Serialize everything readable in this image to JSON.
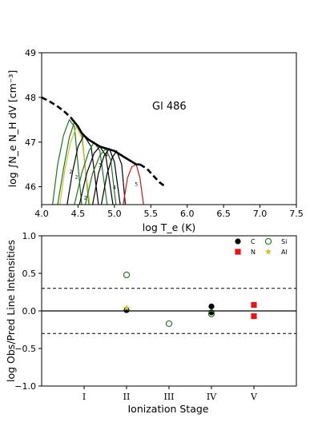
{
  "chart_data": [
    {
      "type": "line",
      "title": "Gl 486",
      "xlabel": "log T_e (K)",
      "ylabel": "log ∫N_e N_H dV [cm⁻³]",
      "xlim": [
        4.0,
        7.5
      ],
      "ylim": [
        45.6,
        49.0
      ],
      "xticks": [
        "4.0",
        "4.5",
        "5.0",
        "5.5",
        "6.0",
        "6.5",
        "7.0",
        "7.5"
      ],
      "yticks": [
        "46",
        "47",
        "48",
        "49"
      ],
      "emd": {
        "solid": {
          "x": [
            4.4,
            4.5,
            4.55,
            4.6,
            4.65,
            4.7,
            4.8,
            4.9,
            5.0,
            5.1,
            5.2,
            5.3,
            5.35
          ],
          "y": [
            47.55,
            47.35,
            47.2,
            47.12,
            47.05,
            47.0,
            46.9,
            46.85,
            46.8,
            46.7,
            46.6,
            46.5,
            46.5
          ]
        },
        "dashed_low": {
          "x": [
            4.0,
            4.1,
            4.2,
            4.3,
            4.4
          ],
          "y": [
            48.0,
            47.92,
            47.82,
            47.7,
            47.55
          ]
        },
        "dashed_high": {
          "x": [
            5.35,
            5.45,
            5.55,
            5.62,
            5.7
          ],
          "y": [
            46.5,
            46.4,
            46.22,
            46.1,
            46.0
          ]
        }
      },
      "contribution_curves": [
        {
          "color": "#1a7a1a",
          "x": [
            4.15,
            4.22,
            4.3,
            4.38,
            4.45,
            4.55
          ],
          "y": [
            45.6,
            46.5,
            47.15,
            47.5,
            47.35,
            45.6
          ]
        },
        {
          "color": "#1a7a1a",
          "x": [
            4.22,
            4.3,
            4.38,
            4.45,
            4.55,
            4.65
          ],
          "y": [
            45.6,
            46.4,
            47.1,
            47.45,
            47.2,
            45.6
          ]
        },
        {
          "color": "#c9c62a",
          "x": [
            4.25,
            4.32,
            4.4,
            4.48,
            4.55,
            4.66
          ],
          "y": [
            45.6,
            46.4,
            47.0,
            47.35,
            47.1,
            45.6
          ]
        },
        {
          "color": "#000000",
          "x": [
            4.35,
            4.42,
            4.5,
            4.58,
            4.68,
            4.78
          ],
          "y": [
            45.6,
            46.3,
            46.9,
            47.15,
            46.9,
            45.6
          ]
        },
        {
          "color": "#1a7a1a",
          "x": [
            4.45,
            4.55,
            4.65,
            4.72,
            4.8,
            4.9
          ],
          "y": [
            45.6,
            46.3,
            46.8,
            47.0,
            46.8,
            45.6
          ]
        },
        {
          "color": "#000000",
          "x": [
            4.52,
            4.62,
            4.72,
            4.8,
            4.88,
            4.98
          ],
          "y": [
            45.6,
            46.3,
            46.75,
            46.9,
            46.7,
            45.6
          ]
        },
        {
          "color": "#1a7a1a",
          "x": [
            4.6,
            4.7,
            4.8,
            4.88,
            4.95,
            5.02
          ],
          "y": [
            45.6,
            46.3,
            46.7,
            46.85,
            46.6,
            45.6
          ]
        },
        {
          "color": "#000000",
          "x": [
            4.7,
            4.78,
            4.86,
            4.93,
            5.0,
            5.08
          ],
          "y": [
            45.6,
            46.3,
            46.7,
            46.85,
            46.55,
            45.6
          ]
        },
        {
          "color": "#000000",
          "x": [
            4.82,
            4.9,
            4.97,
            5.03,
            5.1,
            5.15
          ],
          "y": [
            45.6,
            46.3,
            46.65,
            46.8,
            46.5,
            45.6
          ]
        },
        {
          "color": "#dd1111",
          "x": [
            5.12,
            5.18,
            5.24,
            5.3,
            5.35,
            5.4
          ],
          "y": [
            45.6,
            46.2,
            46.45,
            46.5,
            46.2,
            45.6
          ]
        }
      ],
      "curve_labels": [
        {
          "text": "2",
          "x": 4.38,
          "y": 46.3
        },
        {
          "text": "2",
          "x": 4.46,
          "y": 46.18
        },
        {
          "text": "2",
          "x": 4.58,
          "y": 45.72
        },
        {
          "text": "3",
          "x": 4.78,
          "y": 46.45
        },
        {
          "text": "4",
          "x": 4.87,
          "y": 46.67
        },
        {
          "text": "4",
          "x": 4.98,
          "y": 45.95
        },
        {
          "text": "5",
          "x": 5.28,
          "y": 46.02
        }
      ]
    },
    {
      "type": "scatter",
      "xlabel": "Ionization Stage",
      "ylabel": "log Obs/Pred Line Intensities",
      "xlim": [
        0,
        6
      ],
      "ylim": [
        -1.0,
        1.0
      ],
      "xticks": [
        "I",
        "II",
        "III",
        "IV",
        "V"
      ],
      "yticks": [
        "−1.0",
        "−0.5",
        "0.0",
        "0.5",
        "1.0"
      ],
      "reference_lines": {
        "solid": [
          0.0
        ],
        "dashed": [
          0.3,
          -0.3
        ]
      },
      "legend_position": "top-right",
      "series": [
        {
          "name": "C",
          "marker": "filled-circle",
          "color": "#000000",
          "points": [
            [
              2.0,
              0.01
            ],
            [
              4.0,
              0.06
            ],
            [
              4.0,
              -0.02
            ]
          ]
        },
        {
          "name": "N",
          "marker": "square",
          "color": "#ee1111",
          "points": [
            [
              5.0,
              0.08
            ],
            [
              5.0,
              -0.07
            ]
          ]
        },
        {
          "name": "Si",
          "marker": "open-circle",
          "color": "#1a7a1a",
          "points": [
            [
              2.0,
              0.48
            ],
            [
              3.0,
              -0.17
            ],
            [
              4.0,
              -0.04
            ]
          ]
        },
        {
          "name": "Al",
          "marker": "star",
          "color": "#c9c62a",
          "points": [
            [
              2.0,
              0.04
            ]
          ]
        }
      ]
    }
  ]
}
